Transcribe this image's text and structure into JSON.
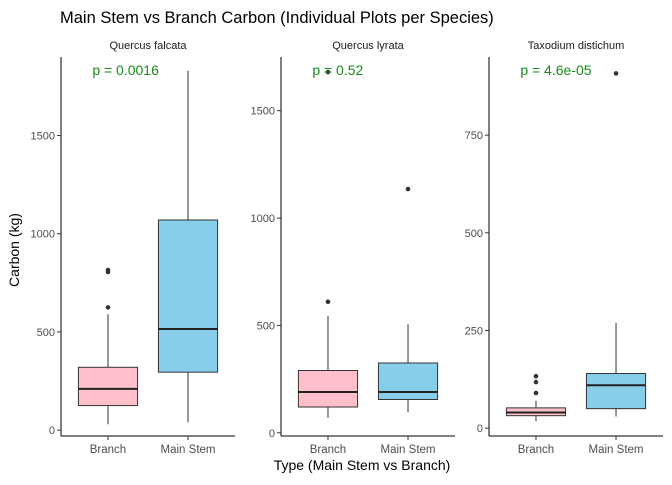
{
  "chart_data": {
    "type": "boxplot",
    "title": "Main Stem vs Branch Carbon (Individual Plots per Species)",
    "xlabel": "Type (Main Stem vs Branch)",
    "ylabel": "Carbon (kg)",
    "categories": [
      "Branch",
      "Main Stem"
    ],
    "category_colors": {
      "Branch": "#FFC0CB",
      "Main Stem": "#87CEEB"
    },
    "pvalue_color": "#1a8a1a",
    "grid": false,
    "panels": [
      {
        "title": "Quercus falcata",
        "pvalue": "p = 0.0016",
        "ylim": [
          -30,
          1900
        ],
        "yticks": [
          0,
          500,
          1000,
          1500
        ],
        "boxes": [
          {
            "category": "Branch",
            "whisker_low": 30,
            "q1": 125,
            "median": 210,
            "q3": 320,
            "whisker_high": 590,
            "outliers": [
              625,
              805,
              815
            ]
          },
          {
            "category": "Main Stem",
            "whisker_low": 40,
            "q1": 295,
            "median": 515,
            "q3": 1070,
            "whisker_high": 1830,
            "outliers": []
          }
        ]
      },
      {
        "title": "Quercus lyrata",
        "pvalue": "p = 0.52",
        "ylim": [
          -15,
          1750
        ],
        "yticks": [
          0,
          500,
          1000,
          1500
        ],
        "boxes": [
          {
            "category": "Branch",
            "whisker_low": 70,
            "q1": 120,
            "median": 190,
            "q3": 290,
            "whisker_high": 545,
            "outliers": [
              610,
              1680
            ]
          },
          {
            "category": "Main Stem",
            "whisker_low": 95,
            "q1": 155,
            "median": 190,
            "q3": 325,
            "whisker_high": 505,
            "outliers": [
              1135
            ]
          }
        ]
      },
      {
        "title": "Taxodium distichum",
        "pvalue": "p = 4.6e-05",
        "ylim": [
          -20,
          950
        ],
        "yticks": [
          0,
          250,
          500,
          750
        ],
        "boxes": [
          {
            "category": "Branch",
            "whisker_low": 18,
            "q1": 32,
            "median": 40,
            "q3": 52,
            "whisker_high": 70,
            "outliers": [
              90,
              118,
              133
            ]
          },
          {
            "category": "Main Stem",
            "whisker_low": 30,
            "q1": 50,
            "median": 110,
            "q3": 140,
            "whisker_high": 270,
            "outliers": [
              908
            ]
          }
        ]
      }
    ]
  }
}
